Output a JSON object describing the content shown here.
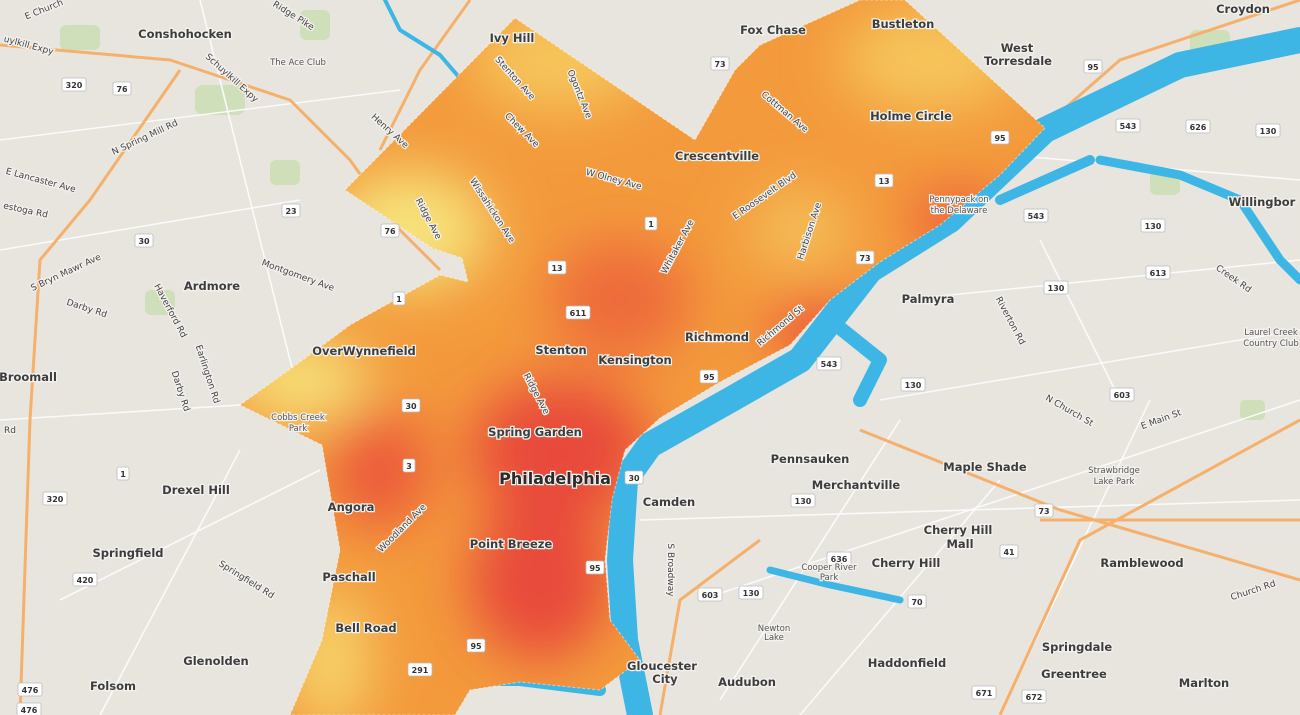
{
  "map": {
    "colors": {
      "land": "#e8e5df",
      "water": "#3db6e6",
      "highway": "#f5b06b",
      "road": "#ffffff",
      "park": "#c9dcb2",
      "heat_low": "#f6e27a",
      "heat_mid": "#f39a3c",
      "heat_high": "#e8483a"
    },
    "places": [
      "Conshohocken",
      "The Ace Club",
      "Ivy Hill",
      "Fox Chase",
      "Bustleton",
      "West",
      "Torresdale",
      "Croydon",
      "Holme Circle",
      "Crescentville",
      "Pennypack on",
      "the Delaware",
      "Willingbor",
      "Ardmore",
      "Palmyra",
      "Laurel Creek",
      "Country Club",
      "Broomall",
      "OverWynnefield",
      "Stenton",
      "Kensington",
      "Richmond",
      "Cobbs Creek",
      "Park",
      "Spring Garden",
      "Pennsauken",
      "Maple Shade",
      "Merchantville",
      "Strawbridge",
      "Lake Park",
      "Drexel Hill",
      "Camden",
      "Angora",
      "Cherry Hill",
      "Mall",
      "Point Breeze",
      "Springfield",
      "Cherry Hill",
      "Ramblewood",
      "Cooper River",
      "Park",
      "Paschall",
      "Newton",
      "Lake",
      "Bell Road",
      "Glenolden",
      "Haddonfield",
      "Springdale",
      "Greentree",
      "Gloucester",
      "City",
      "Audubon",
      "Folsom",
      "Marlton"
    ],
    "city": "Philadelphia",
    "roads": [
      "uylkill Expy",
      "Schuylkill Expy",
      "Ridge Pike",
      "Henry Ave",
      "N Spring Mill Rd",
      "E Lancaster Ave",
      "estoga Rd",
      "Ridge Ave",
      "Wissahickon Ave",
      "Stenton Ave",
      "Ogontz Ave",
      "Chew Ave",
      "W Olney Ave",
      "E Roosevelt Blvd",
      "Whitaker Ave",
      "Harbison Ave",
      "Cottman Ave",
      "Montgomery Ave",
      "S Bryn Mawr Ave",
      "Darby Rd",
      "Haverford Rd",
      "Earlington Rd",
      "Darby Rd",
      "Rd",
      "Riverton Rd",
      "Creek Rd",
      "N Church St",
      "E Main St",
      "Richmond St",
      "Ridge Ave",
      "Woodland Ave",
      "Springfield Rd",
      "S Broadway",
      "Church Rd",
      "E Church"
    ],
    "shields": [
      "320",
      "76",
      "23",
      "30",
      "76",
      "1",
      "30",
      "3",
      "1",
      "320",
      "420",
      "476",
      "476",
      "13",
      "1",
      "611",
      "95",
      "73",
      "95",
      "13",
      "73",
      "95",
      "543",
      "626",
      "130",
      "543",
      "130",
      "613",
      "130",
      "543",
      "130",
      "603",
      "30",
      "130",
      "636",
      "73",
      "41",
      "70",
      "603",
      "130",
      "95",
      "291",
      "95",
      "672",
      "671"
    ]
  }
}
